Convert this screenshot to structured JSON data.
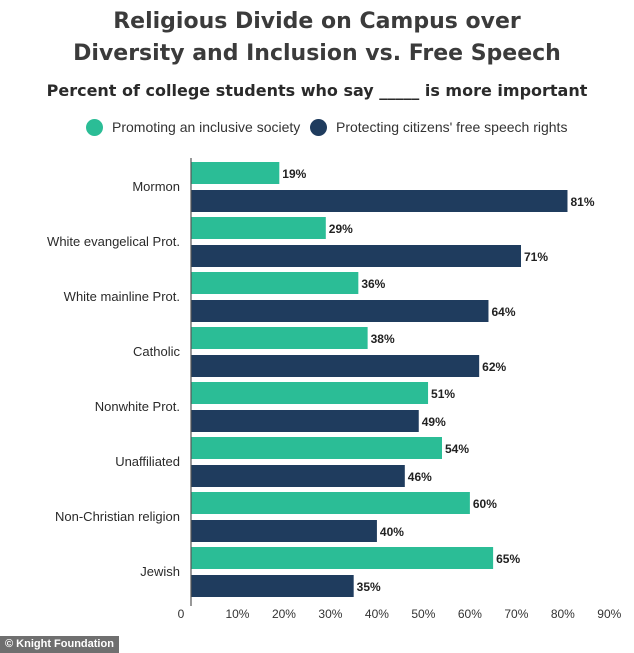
{
  "title_line1": "Religious Divide on Campus over",
  "title_line2": "Diversity and Inclusion vs. Free Speech",
  "subtitle": "Percent of college students who say _____ is more important",
  "footer": "© Knight Foundation",
  "colors": {
    "inclusive": "#2bbd96",
    "speech": "#1f3c5e",
    "axis": "#555555"
  },
  "chart_data": {
    "type": "bar",
    "orientation": "horizontal",
    "categories": [
      "Mormon",
      "White evangelical Prot.",
      "White mainline Prot.",
      "Catholic",
      "Nonwhite Prot.",
      "Unaffiliated",
      "Non-Christian religion",
      "Jewish"
    ],
    "series": [
      {
        "name": "Promoting an inclusive society",
        "values": [
          19,
          29,
          36,
          38,
          51,
          54,
          60,
          65
        ]
      },
      {
        "name": "Protecting citizens' free speech rights",
        "values": [
          81,
          71,
          64,
          62,
          49,
          46,
          40,
          35
        ]
      }
    ],
    "value_suffix": "%",
    "xlim": [
      0,
      90
    ],
    "xticks": [
      "0",
      "10%",
      "20%",
      "30%",
      "40%",
      "50%",
      "60%",
      "70%",
      "80%",
      "90%"
    ],
    "xtick_values": [
      0,
      10,
      20,
      30,
      40,
      50,
      60,
      70,
      80,
      90
    ],
    "legend_position": "top",
    "grid": false
  }
}
